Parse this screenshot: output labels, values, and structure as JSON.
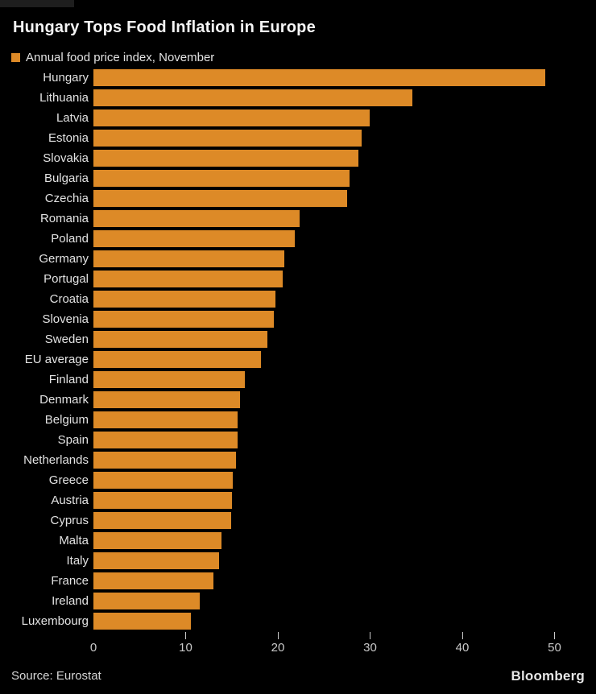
{
  "header": {
    "title": "Hungary Tops Food Inflation in Europe",
    "legend_label": "Annual food price index, November"
  },
  "chart_data": {
    "type": "bar",
    "orientation": "horizontal",
    "title": "Hungary Tops Food Inflation in Europe",
    "legend": "Annual food price index, November",
    "legend_position": "top-left",
    "grid": false,
    "bar_color": "#dd8a27",
    "categories": [
      "Hungary",
      "Lithuania",
      "Latvia",
      "Estonia",
      "Slovakia",
      "Bulgaria",
      "Czechia",
      "Romania",
      "Poland",
      "Germany",
      "Portugal",
      "Croatia",
      "Slovenia",
      "Sweden",
      "EU average",
      "Finland",
      "Denmark",
      "Belgium",
      "Spain",
      "Netherlands",
      "Greece",
      "Austria",
      "Cyprus",
      "Malta",
      "Italy",
      "France",
      "Ireland",
      "Luxembourg"
    ],
    "values": [
      49.0,
      34.6,
      30.0,
      29.1,
      28.7,
      27.8,
      27.5,
      22.4,
      21.8,
      20.7,
      20.5,
      19.7,
      19.6,
      18.9,
      18.2,
      16.4,
      15.9,
      15.6,
      15.6,
      15.5,
      15.1,
      15.0,
      14.9,
      13.9,
      13.6,
      13.0,
      11.5,
      10.6
    ],
    "xlabel": "",
    "ylabel": "",
    "xlim": [
      0,
      54.5
    ],
    "xticks": [
      0,
      10,
      20,
      30,
      40,
      50
    ]
  },
  "footer": {
    "source": "Source: Eurostat",
    "brand": "Bloomberg"
  }
}
